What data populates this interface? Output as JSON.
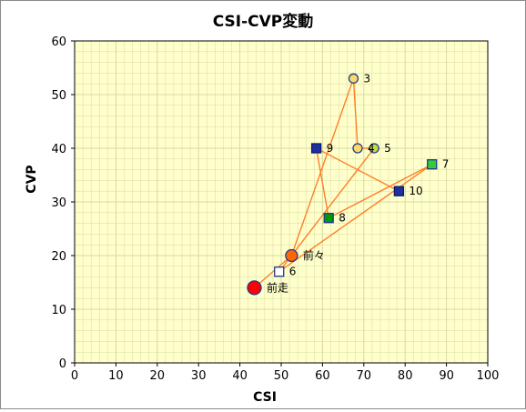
{
  "chart_data": {
    "type": "scatter",
    "title": "CSI-CVP変動",
    "xlabel": "CSI",
    "ylabel": "CVP",
    "xlim": [
      0,
      100
    ],
    "ylim": [
      0,
      60
    ],
    "xticks": [
      0,
      10,
      20,
      30,
      40,
      50,
      60,
      70,
      80,
      90,
      100
    ],
    "yticks": [
      0,
      10,
      20,
      30,
      40,
      50,
      60
    ],
    "grid": true,
    "plot_background": "#ffffcc",
    "gridline_color": "#d9d9a3",
    "line_color": "#ff7f27",
    "sequence": [
      "10",
      "9",
      "8",
      "7",
      "6",
      "5",
      "4",
      "3",
      "前々",
      "前走"
    ],
    "points": [
      {
        "label": "3",
        "x": 67.5,
        "y": 53,
        "marker": "circle",
        "fill": "#ffd966",
        "stroke": "#1f3a93",
        "size": "small"
      },
      {
        "label": "4",
        "x": 68.5,
        "y": 40,
        "marker": "circle",
        "fill": "#ffd966",
        "stroke": "#1f3a93",
        "size": "small"
      },
      {
        "label": "5",
        "x": 72.5,
        "y": 40,
        "marker": "circle",
        "fill": "#c9d93b",
        "stroke": "#1f3a93",
        "size": "small"
      },
      {
        "label": "6",
        "x": 49.5,
        "y": 17,
        "marker": "square",
        "fill": "#ffffff",
        "stroke": "#1f3a93",
        "size": "small"
      },
      {
        "label": "7",
        "x": 86.5,
        "y": 37,
        "marker": "square",
        "fill": "#33cc33",
        "stroke": "#1f3a93",
        "size": "small"
      },
      {
        "label": "8",
        "x": 61.5,
        "y": 27,
        "marker": "square",
        "fill": "#009900",
        "stroke": "#1f3a93",
        "size": "small"
      },
      {
        "label": "9",
        "x": 58.5,
        "y": 40,
        "marker": "square",
        "fill": "#1f2f9c",
        "stroke": "#0a1a6e",
        "size": "small"
      },
      {
        "label": "10",
        "x": 78.5,
        "y": 32,
        "marker": "square",
        "fill": "#1f2f9c",
        "stroke": "#0a1a6e",
        "size": "small"
      },
      {
        "label": "前々",
        "x": 52.5,
        "y": 20,
        "marker": "circle",
        "fill": "#ff6600",
        "stroke": "#1f3a93",
        "size": "medium"
      },
      {
        "label": "前走",
        "x": 43.5,
        "y": 14,
        "marker": "circle",
        "fill": "#ff0000",
        "stroke": "#1f3a93",
        "size": "large"
      }
    ]
  }
}
